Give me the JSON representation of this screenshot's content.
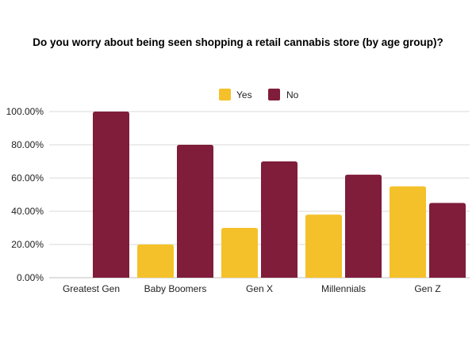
{
  "chart_data": {
    "type": "bar",
    "title": "Do you worry about being seen shopping a retail cannabis store (by age group)?",
    "xlabel": "",
    "ylabel": "",
    "categories": [
      "Greatest Gen",
      "Baby Boomers",
      "Gen X",
      "Millennials",
      "Gen Z"
    ],
    "series": [
      {
        "name": "Yes",
        "color": "#f4c12a",
        "values": [
          0,
          20,
          30,
          38,
          55
        ]
      },
      {
        "name": "No",
        "color": "#7f1d3a",
        "values": [
          100,
          80,
          70,
          62,
          45
        ]
      }
    ],
    "ylim": [
      0,
      100
    ],
    "yticks": [
      0,
      20,
      40,
      60,
      80,
      100
    ],
    "ytick_labels": [
      "0.00%",
      "20.00%",
      "40.00%",
      "60.00%",
      "80.00%",
      "100.00%"
    ],
    "grid": true,
    "legend": "top-center"
  }
}
